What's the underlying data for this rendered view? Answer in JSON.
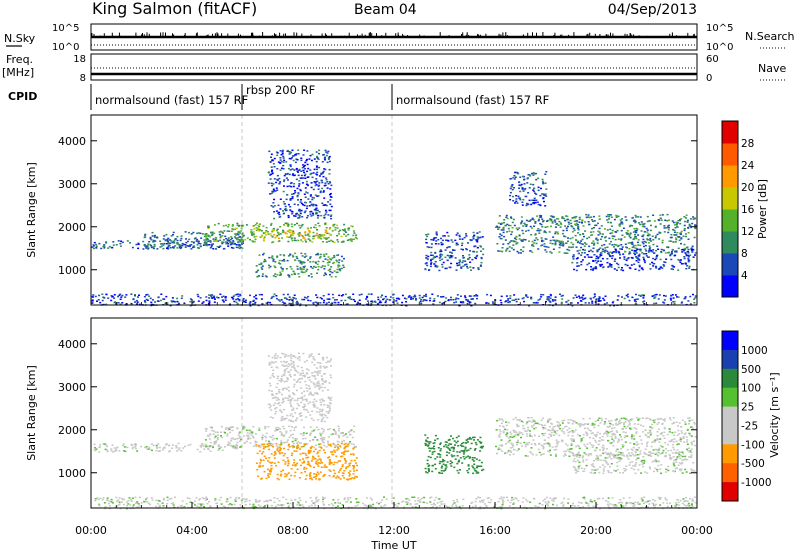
{
  "header": {
    "station": "King Salmon (fitACF)",
    "beam": "Beam 04",
    "date": "04/Sep/2013"
  },
  "status_panel": {
    "nsky_label": "N.Sky",
    "nsky_ticks": [
      "10^5",
      "10^0"
    ],
    "nsearch_label": "N.Search",
    "nsearch_ticks": [
      "10^5",
      "10^0"
    ],
    "freq_label_1": "Freq.",
    "freq_label_2": "[MHz]",
    "freq_ticks": [
      "18",
      "8"
    ],
    "nave_label": "Nave",
    "nave_ticks": [
      "60",
      "0"
    ],
    "cpid_label": "CPID",
    "cpid_segments": [
      {
        "label": "normalsound (fast) 157 RF",
        "start_hour": 0,
        "end_hour": 6
      },
      {
        "label": "rbsp 200 RF",
        "start_hour": 6,
        "end_hour": 12
      },
      {
        "label": "normalsound (fast) 157 RF",
        "start_hour": 12,
        "end_hour": 24
      }
    ]
  },
  "chart_data": [
    {
      "type": "heatmap",
      "name": "power",
      "ylabel": "Slant Range [km]",
      "yticks": [
        "1000",
        "2000",
        "3000",
        "4000"
      ],
      "ylim": [
        180,
        4600
      ],
      "xlim": [
        0,
        24
      ],
      "colorbar_label": "Power [dB]",
      "colorbar_ticks": [
        "4",
        "8",
        "12",
        "16",
        "20",
        "24",
        "28"
      ],
      "colorbar_range": [
        0,
        30
      ],
      "colors": [
        "#0000ff",
        "#1a48b8",
        "#2f8a5e",
        "#55b02a",
        "#c8c800",
        "#ff9a00",
        "#ff5a00",
        "#e00000"
      ],
      "regions": [
        {
          "h0": 0.0,
          "h1": 6.0,
          "r0": 1500,
          "r1": 1700,
          "v": 6
        },
        {
          "h0": 2.0,
          "h1": 6.0,
          "r0": 1500,
          "r1": 1900,
          "v": 8
        },
        {
          "h0": 4.5,
          "h1": 10.5,
          "r0": 1650,
          "r1": 2100,
          "v": 13
        },
        {
          "h0": 6.5,
          "h1": 9.5,
          "r0": 1750,
          "r1": 1950,
          "v": 19
        },
        {
          "h0": 6.5,
          "h1": 10.0,
          "r0": 850,
          "r1": 1400,
          "v": 10
        },
        {
          "h0": 7.0,
          "h1": 9.5,
          "r0": 2200,
          "r1": 3800,
          "v": 5
        },
        {
          "h0": 13.2,
          "h1": 15.5,
          "r0": 1000,
          "r1": 1900,
          "v": 6
        },
        {
          "h0": 16.0,
          "h1": 24.0,
          "r0": 1400,
          "r1": 2300,
          "v": 9
        },
        {
          "h0": 16.5,
          "h1": 18.0,
          "r0": 2500,
          "r1": 3300,
          "v": 6
        },
        {
          "h0": 19.0,
          "h1": 24.0,
          "r0": 1000,
          "r1": 1500,
          "v": 5
        },
        {
          "h0": 0.0,
          "h1": 24.0,
          "r0": 180,
          "r1": 450,
          "v": 5
        }
      ]
    },
    {
      "type": "heatmap",
      "name": "velocity",
      "xlabel": "Time UT",
      "ylabel": "Slant Range [km]",
      "xticks": [
        "00:00",
        "04:00",
        "08:00",
        "12:00",
        "16:00",
        "20:00",
        "00:00"
      ],
      "yticks": [
        "1000",
        "2000",
        "3000",
        "4000"
      ],
      "ylim": [
        180,
        4600
      ],
      "xlim": [
        0,
        24
      ],
      "colorbar_label": "Velocity [m s⁻¹]",
      "colorbar_ticks": [
        "1000",
        "500",
        "100",
        "25",
        "-25",
        "-100",
        "-500",
        "-1000"
      ],
      "colors": [
        "#e00000",
        "#ff6000",
        "#ff9a00",
        "#c8c8c8",
        "#c8c8c8",
        "#55c030",
        "#2a8a3a",
        "#1a40b0",
        "#0000ff"
      ],
      "regions": [
        {
          "h0": 0.0,
          "h1": 6.0,
          "r0": 1500,
          "r1": 1700,
          "v": 0
        },
        {
          "h0": 4.5,
          "h1": 10.5,
          "r0": 1600,
          "r1": 2100,
          "v": 0
        },
        {
          "h0": 6.5,
          "h1": 10.5,
          "r0": 850,
          "r1": 1700,
          "v": -300
        },
        {
          "h0": 7.0,
          "h1": 9.5,
          "r0": 2200,
          "r1": 3800,
          "v": -40
        },
        {
          "h0": 13.2,
          "h1": 15.5,
          "r0": 1000,
          "r1": 1900,
          "v": 150
        },
        {
          "h0": 16.0,
          "h1": 24.0,
          "r0": 1400,
          "r1": 2300,
          "v": 0
        },
        {
          "h0": 19.0,
          "h1": 24.0,
          "r0": 1000,
          "r1": 1500,
          "v": 0
        },
        {
          "h0": 0.0,
          "h1": 24.0,
          "r0": 180,
          "r1": 450,
          "v": 0
        }
      ]
    }
  ]
}
